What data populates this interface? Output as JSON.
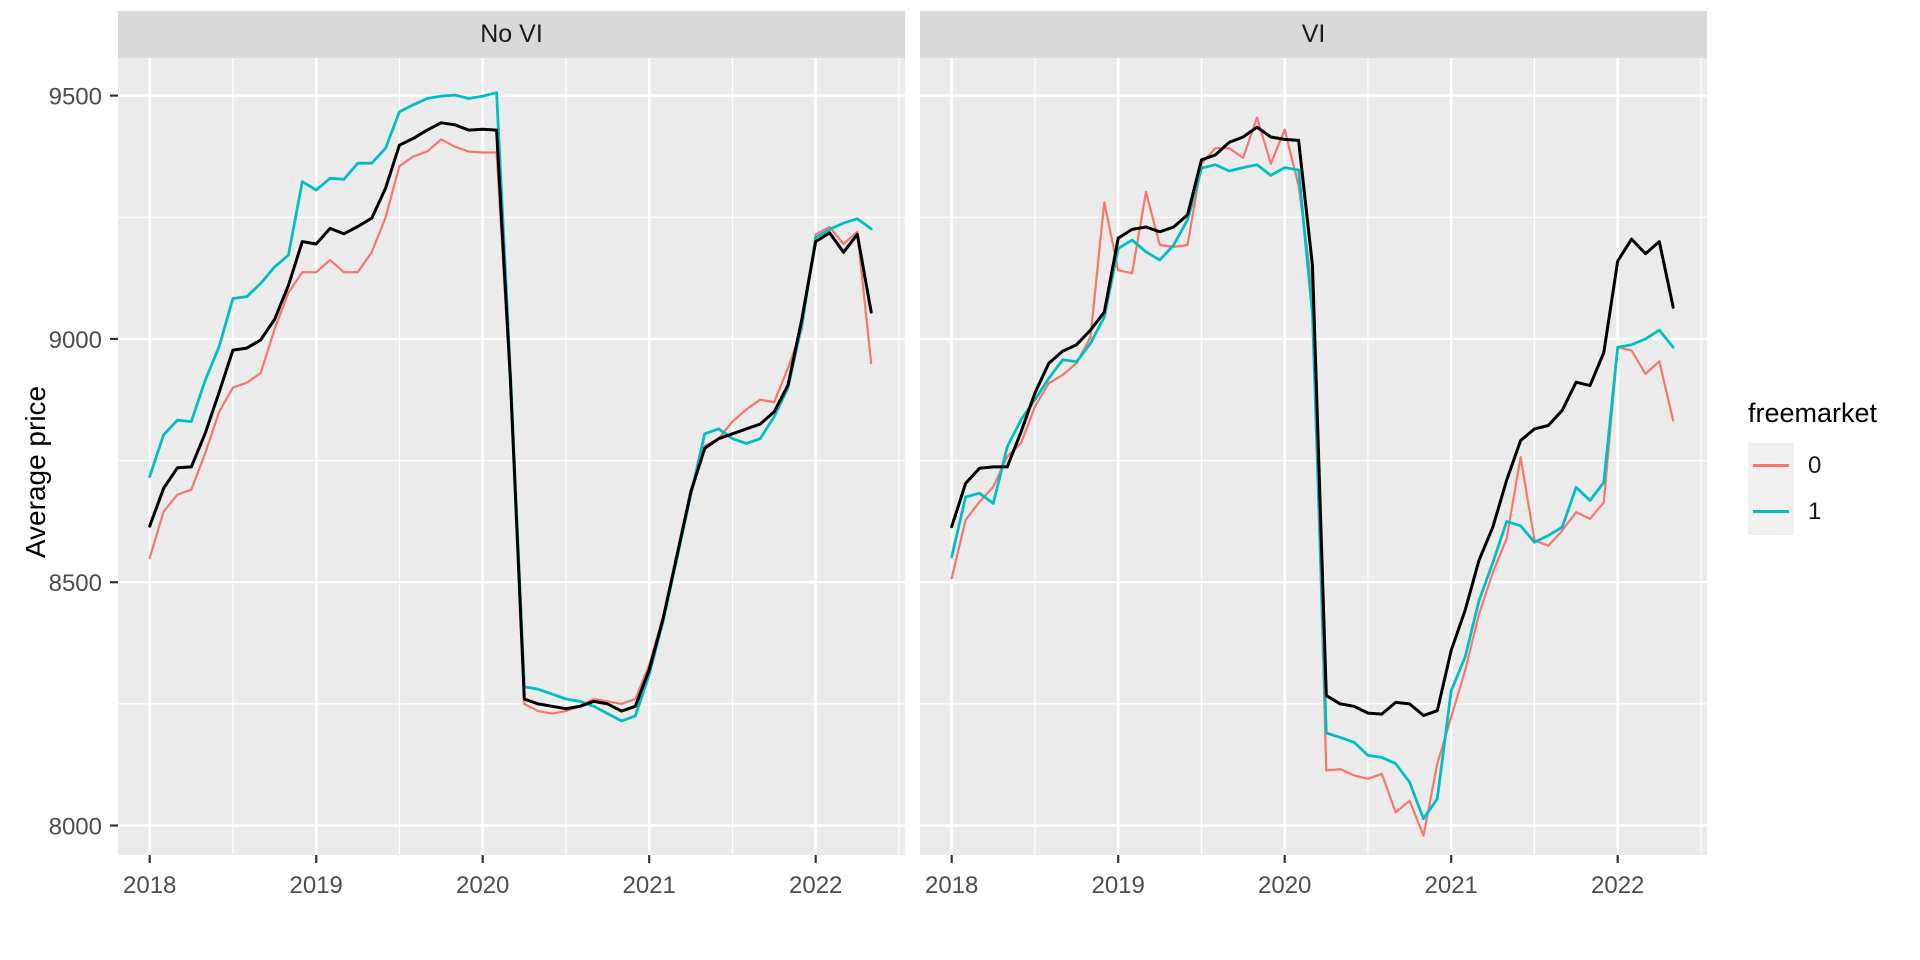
{
  "figure": {
    "background": "#FFFFFF",
    "panel_background": "#EBEBEB",
    "strip_background": "#D9D9D9",
    "grid_color": "#FFFFFF",
    "axis_text_color": "#4D4D4D",
    "strip_text_color": "#1A1A1A"
  },
  "chart_data": {
    "type": "line",
    "title": "",
    "xlabel": "",
    "ylabel": "Average price",
    "x_unit": "month",
    "x_start_label": "2018",
    "x_tick_labels": [
      "2018",
      "2019",
      "2020",
      "2021",
      "2022"
    ],
    "x_tick_month_index": [
      0,
      12,
      24,
      36,
      48
    ],
    "x_minor_month_index": [
      6,
      18,
      30,
      42,
      54
    ],
    "y_tick_labels": [
      "8000",
      "8500",
      "9000",
      "9500"
    ],
    "y_ticks": [
      8000,
      8500,
      9000,
      9500
    ],
    "y_minor": [
      8250,
      8750,
      9250
    ],
    "ylim": [
      7940,
      9580
    ],
    "grid": "on",
    "legend_position": "right",
    "legend": {
      "title": "freemarket",
      "items": [
        {
          "label": "0",
          "color": "#F8766D"
        },
        {
          "label": "1",
          "color": "#00BFC4"
        }
      ]
    },
    "facets": [
      {
        "label": "No VI",
        "series": [
          {
            "key": "freemarket-0",
            "legend_label": "0",
            "color": "#F8766D",
            "width": 2.2,
            "values": [
              8550,
              8645,
              8680,
              8690,
              8765,
              8850,
              8900,
              8910,
              8930,
              9020,
              9095,
              9137,
              9137,
              9162,
              9137,
              9137,
              9178,
              9250,
              9355,
              9375,
              9385,
              9410,
              9395,
              9385,
              9383,
              9383,
              8905,
              8250,
              8235,
              8230,
              8235,
              8245,
              8260,
              8255,
              8250,
              8260,
              8330,
              8430,
              8560,
              8690,
              8780,
              8795,
              8830,
              8855,
              8875,
              8870,
              8940,
              9020,
              9215,
              9230,
              9195,
              9220,
              8950
            ]
          },
          {
            "key": "freemarket-1",
            "legend_label": "1",
            "color": "#00BFC4",
            "width": 2.8,
            "values": [
              8717,
              8803,
              8833,
              8830,
              8915,
              8984,
              9083,
              9087,
              9114,
              9148,
              9172,
              9323,
              9306,
              9330,
              9328,
              9361,
              9361,
              9392,
              9467,
              9481,
              9494,
              9499,
              9501,
              9494,
              9499,
              9506,
              8929,
              8285,
              8280,
              8270,
              8260,
              8255,
              8245,
              8230,
              8215,
              8225,
              8310,
              8420,
              8550,
              8680,
              8805,
              8815,
              8795,
              8785,
              8795,
              8840,
              8900,
              9028,
              9208,
              9225,
              9238,
              9247,
              9226
            ]
          },
          {
            "key": "overall",
            "legend_label": "",
            "color": "#000000",
            "width": 3.0,
            "values": [
              8615,
              8693,
              8735,
              8737,
              8806,
              8890,
              8977,
              8981,
              8998,
              9040,
              9110,
              9200,
              9195,
              9227,
              9216,
              9231,
              9248,
              9310,
              9398,
              9412,
              9429,
              9444,
              9440,
              9429,
              9431,
              9429,
              8916,
              8260,
              8250,
              8245,
              8240,
              8245,
              8255,
              8250,
              8235,
              8245,
              8320,
              8425,
              8555,
              8685,
              8775,
              8795,
              8805,
              8815,
              8825,
              8850,
              8905,
              9040,
              9200,
              9218,
              9178,
              9215,
              9055
            ]
          }
        ]
      },
      {
        "label": "VI",
        "series": [
          {
            "key": "freemarket-0",
            "legend_label": "0",
            "color": "#F8766D",
            "width": 2.2,
            "values": [
              8508,
              8628,
              8665,
              8696,
              8758,
              8786,
              8861,
              8909,
              8926,
              8950,
              9004,
              9281,
              9141,
              9135,
              9302,
              9193,
              9189,
              9193,
              9360,
              9392,
              9392,
              9372,
              9455,
              9360,
              9430,
              9315,
              9100,
              8113,
              8116,
              8103,
              8096,
              8106,
              8027,
              8051,
              7979,
              8127,
              8223,
              8318,
              8434,
              8520,
              8590,
              8757,
              8586,
              8575,
              8606,
              8644,
              8630,
              8664,
              8983,
              8976,
              8928,
              8954,
              8832
            ]
          },
          {
            "key": "freemarket-1",
            "legend_label": "1",
            "color": "#00BFC4",
            "width": 2.8,
            "values": [
              8552,
              8675,
              8683,
              8662,
              8778,
              8834,
              8875,
              8919,
              8957,
              8953,
              8991,
              9045,
              9186,
              9203,
              9179,
              9162,
              9193,
              9245,
              9351,
              9358,
              9345,
              9352,
              9358,
              9336,
              9352,
              9347,
              9050,
              8190,
              8181,
              8171,
              8144,
              8140,
              8127,
              8089,
              8014,
              8055,
              8277,
              8346,
              8462,
              8540,
              8625,
              8616,
              8582,
              8596,
              8613,
              8695,
              8668,
              8705,
              8983,
              8988,
              9000,
              9018,
              8983
            ]
          },
          {
            "key": "overall",
            "legend_label": "",
            "color": "#000000",
            "width": 3.0,
            "values": [
              8614,
              8703,
              8734,
              8737,
              8737,
              8809,
              8889,
              8950,
              8975,
              8988,
              9018,
              9055,
              9207,
              9225,
              9230,
              9220,
              9230,
              9255,
              9368,
              9378,
              9404,
              9415,
              9435,
              9415,
              9410,
              9408,
              9150,
              8267,
              8250,
              8245,
              8231,
              8229,
              8253,
              8250,
              8226,
              8236,
              8360,
              8442,
              8545,
              8613,
              8710,
              8791,
              8815,
              8822,
              8853,
              8911,
              8904,
              8972,
              9160,
              9205,
              9175,
              9200,
              9065
            ]
          }
        ]
      }
    ]
  }
}
